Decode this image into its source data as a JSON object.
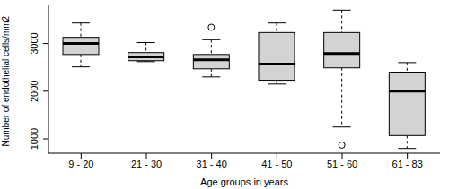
{
  "chart_data": {
    "type": "box",
    "x_label": "Age groups in years",
    "y_label": "Number of endothelial cells/mm2",
    "categories": [
      "9 - 20",
      "21 - 30",
      "31 - 40",
      "41 - 50",
      "51 - 60",
      "61 - 83"
    ],
    "min": [
      2510,
      2620,
      2300,
      2150,
      1250,
      800
    ],
    "q1": [
      2770,
      2640,
      2470,
      2230,
      2490,
      1070
    ],
    "median": [
      3000,
      2720,
      2660,
      2570,
      2790,
      2000
    ],
    "q3": [
      3130,
      2810,
      2770,
      3230,
      3230,
      2400
    ],
    "max": [
      3430,
      3020,
      3080,
      3430,
      3700,
      2600
    ],
    "outliers": [
      [],
      [],
      [
        3340
      ],
      [],
      [
        870
      ],
      []
    ],
    "color": "#d3d3d3",
    "ylim": [
      700,
      3800
    ],
    "yticks": [
      1000,
      2000,
      3000
    ],
    "grid": false
  }
}
